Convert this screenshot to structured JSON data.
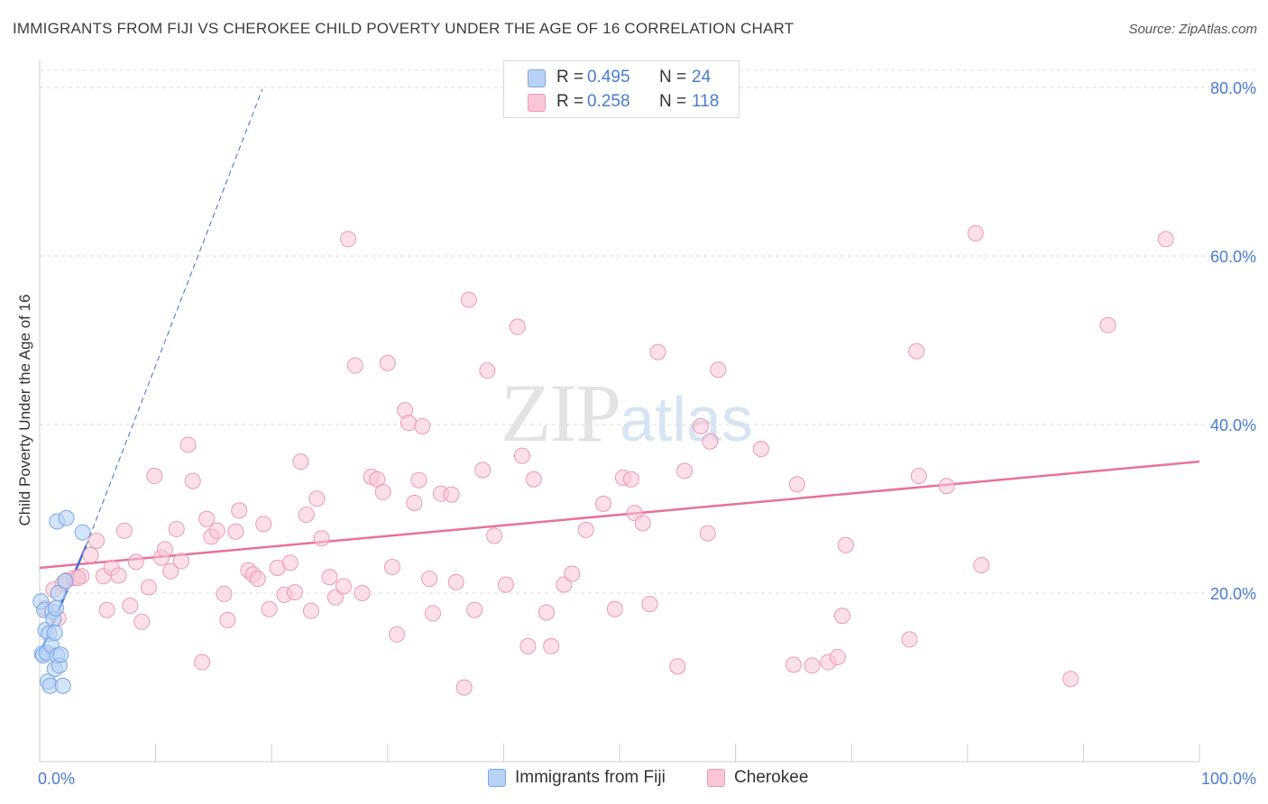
{
  "header": {
    "title": "IMMIGRANTS FROM FIJI VS CHEROKEE CHILD POVERTY UNDER THE AGE OF 16 CORRELATION CHART",
    "source": "Source: ZipAtlas.com"
  },
  "watermark": {
    "zip": "ZIP",
    "atlas": "atlas"
  },
  "legend": {
    "rows": [
      {
        "r_label": "R =",
        "r_value": "0.495",
        "n_label": "N =",
        "n_value": "24"
      },
      {
        "r_label": "R =",
        "r_value": "0.258",
        "n_label": "N =",
        "n_value": "118"
      }
    ]
  },
  "bottom_legend": {
    "fiji": "Immigrants from Fiji",
    "cherokee": "Cherokee"
  },
  "axes": {
    "ylabel": "Child Poverty Under the Age of 16",
    "x_min_label": "0.0%",
    "x_max_label": "100.0%",
    "y_ticks": [
      "80.0%",
      "60.0%",
      "40.0%",
      "20.0%"
    ]
  },
  "colors": {
    "fiji_fill": "#b8d2f5",
    "fiji_stroke": "#7aa7e6",
    "fiji_line": "#3a6fd0",
    "cherokee_fill": "#f9c6d6",
    "cherokee_stroke": "#ec98b5",
    "cherokee_line": "#e8709b",
    "grid": "#dcdcdc",
    "tick_text": "#4a7bd0"
  },
  "chart_data": {
    "type": "scatter",
    "title": "IMMIGRANTS FROM FIJI VS CHEROKEE CHILD POVERTY UNDER THE AGE OF 16 CORRELATION CHART",
    "xlabel": "",
    "ylabel": "Child Poverty Under the Age of 16",
    "xlim": [
      0,
      100
    ],
    "ylim": [
      0,
      80
    ],
    "y_ticks": [
      20,
      40,
      60,
      80
    ],
    "grid": true,
    "legend_position": "top-center",
    "series": [
      {
        "name": "Immigrants from Fiji",
        "r": 0.495,
        "n": 24,
        "trend": {
          "x": [
            0,
            4
          ],
          "y": [
            12.7,
            25.6
          ]
        },
        "trend_extended": {
          "x": [
            4,
            19.2
          ],
          "y": [
            25.6,
            79.8
          ]
        },
        "points": [
          [
            0.1,
            19.0
          ],
          [
            0.2,
            12.8
          ],
          [
            0.3,
            12.6
          ],
          [
            0.4,
            18.0
          ],
          [
            0.5,
            15.6
          ],
          [
            0.6,
            12.9
          ],
          [
            0.7,
            9.5
          ],
          [
            0.8,
            15.2
          ],
          [
            0.9,
            9.0
          ],
          [
            1.0,
            13.8
          ],
          [
            1.1,
            17.8
          ],
          [
            1.2,
            16.9
          ],
          [
            1.3,
            11.0
          ],
          [
            1.3,
            15.3
          ],
          [
            1.4,
            18.2
          ],
          [
            1.5,
            12.6
          ],
          [
            1.5,
            28.5
          ],
          [
            1.6,
            20.0
          ],
          [
            1.7,
            11.4
          ],
          [
            1.8,
            12.7
          ],
          [
            2.0,
            9.0
          ],
          [
            2.2,
            21.4
          ],
          [
            2.3,
            28.9
          ],
          [
            3.7,
            27.2
          ]
        ]
      },
      {
        "name": "Cherokee",
        "r": 0.258,
        "n": 118,
        "trend": {
          "x": [
            0,
            100
          ],
          "y": [
            23.0,
            35.6
          ]
        },
        "points": [
          [
            0.5,
            18.2
          ],
          [
            1.2,
            20.4
          ],
          [
            1.6,
            17.0
          ],
          [
            2.0,
            21.1
          ],
          [
            2.3,
            21.5
          ],
          [
            3.0,
            21.8
          ],
          [
            3.6,
            22.0
          ],
          [
            4.4,
            24.5
          ],
          [
            4.9,
            26.2
          ],
          [
            5.5,
            22.0
          ],
          [
            5.8,
            18.0
          ],
          [
            6.2,
            23.0
          ],
          [
            6.8,
            22.1
          ],
          [
            7.3,
            27.4
          ],
          [
            7.8,
            18.5
          ],
          [
            8.3,
            23.7
          ],
          [
            8.8,
            16.6
          ],
          [
            9.4,
            20.7
          ],
          [
            9.9,
            33.9
          ],
          [
            10.5,
            24.2
          ],
          [
            10.8,
            25.2
          ],
          [
            11.3,
            22.6
          ],
          [
            11.8,
            27.6
          ],
          [
            12.2,
            23.8
          ],
          [
            12.8,
            37.6
          ],
          [
            13.2,
            33.3
          ],
          [
            14.0,
            11.8
          ],
          [
            14.4,
            28.8
          ],
          [
            14.8,
            26.7
          ],
          [
            15.3,
            27.4
          ],
          [
            15.9,
            19.9
          ],
          [
            16.2,
            16.8
          ],
          [
            16.9,
            27.3
          ],
          [
            17.2,
            29.8
          ],
          [
            18.0,
            22.7
          ],
          [
            18.4,
            22.2
          ],
          [
            18.8,
            21.7
          ],
          [
            19.3,
            28.2
          ],
          [
            19.8,
            18.1
          ],
          [
            20.5,
            23.0
          ],
          [
            21.1,
            19.8
          ],
          [
            21.6,
            23.6
          ],
          [
            22.0,
            20.1
          ],
          [
            22.5,
            35.6
          ],
          [
            23.0,
            29.3
          ],
          [
            23.4,
            17.9
          ],
          [
            23.9,
            31.2
          ],
          [
            24.3,
            26.5
          ],
          [
            25.0,
            21.9
          ],
          [
            25.5,
            19.5
          ],
          [
            26.2,
            20.8
          ],
          [
            26.6,
            62.0
          ],
          [
            27.2,
            47.0
          ],
          [
            27.8,
            20.0
          ],
          [
            28.6,
            33.8
          ],
          [
            29.1,
            33.5
          ],
          [
            29.6,
            32.0
          ],
          [
            30.0,
            47.3
          ],
          [
            30.4,
            23.1
          ],
          [
            30.8,
            15.1
          ],
          [
            31.5,
            41.7
          ],
          [
            31.8,
            40.2
          ],
          [
            32.3,
            30.7
          ],
          [
            32.7,
            33.4
          ],
          [
            33.0,
            39.8
          ],
          [
            33.6,
            21.7
          ],
          [
            33.9,
            17.6
          ],
          [
            34.6,
            31.8
          ],
          [
            35.5,
            31.7
          ],
          [
            35.9,
            21.3
          ],
          [
            36.6,
            8.8
          ],
          [
            37.0,
            54.8
          ],
          [
            37.5,
            18.0
          ],
          [
            38.2,
            34.6
          ],
          [
            38.6,
            46.4
          ],
          [
            39.2,
            26.8
          ],
          [
            40.2,
            21.0
          ],
          [
            41.2,
            51.6
          ],
          [
            41.6,
            36.3
          ],
          [
            42.1,
            13.7
          ],
          [
            42.6,
            33.5
          ],
          [
            43.7,
            17.7
          ],
          [
            44.1,
            13.7
          ],
          [
            45.2,
            21.0
          ],
          [
            45.9,
            22.3
          ],
          [
            47.1,
            27.5
          ],
          [
            48.6,
            30.6
          ],
          [
            49.6,
            18.1
          ],
          [
            50.3,
            33.7
          ],
          [
            51.0,
            33.5
          ],
          [
            51.3,
            29.5
          ],
          [
            52.0,
            28.3
          ],
          [
            52.6,
            18.7
          ],
          [
            53.3,
            48.6
          ],
          [
            55.0,
            11.3
          ],
          [
            55.6,
            34.5
          ],
          [
            57.0,
            39.8
          ],
          [
            57.6,
            27.1
          ],
          [
            57.8,
            38.0
          ],
          [
            58.5,
            46.5
          ],
          [
            62.2,
            37.1
          ],
          [
            65.0,
            11.5
          ],
          [
            65.3,
            32.9
          ],
          [
            66.6,
            11.4
          ],
          [
            68.0,
            11.8
          ],
          [
            68.8,
            12.4
          ],
          [
            69.2,
            17.3
          ],
          [
            69.5,
            25.7
          ],
          [
            75.0,
            14.5
          ],
          [
            75.6,
            48.7
          ],
          [
            75.8,
            33.9
          ],
          [
            78.2,
            32.7
          ],
          [
            80.7,
            62.7
          ],
          [
            81.2,
            23.3
          ],
          [
            88.9,
            9.8
          ],
          [
            92.1,
            51.8
          ],
          [
            97.1,
            62.0
          ],
          [
            3.3,
            21.8
          ]
        ]
      }
    ]
  }
}
